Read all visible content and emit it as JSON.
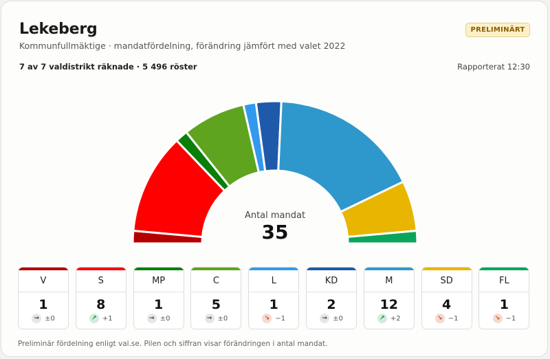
{
  "header": {
    "title": "Lekeberg",
    "subtitle": "Kommunfullmäktige · mandatfördelning, förändring jämfört med valet 2022",
    "badge": "PRELIMINÄRT",
    "counting_status": "7 av 7 valdistrikt räknade · 5 496 röster",
    "reported": "Rapporterat 12:30"
  },
  "center": {
    "label": "Antal mandat",
    "total": "35"
  },
  "footnote": "Preliminär fördelning enligt val.se. Pilen och siffran visar förändringen i antal mandat.",
  "chart_data": {
    "type": "semicircle",
    "total_seats": 35,
    "parties": [
      {
        "abbr": "V",
        "seats": 1,
        "change": 0,
        "change_label": "±0",
        "color": "#b50000",
        "trend": "flat"
      },
      {
        "abbr": "S",
        "seats": 8,
        "change": 1,
        "change_label": "+1",
        "color": "#ff0000",
        "trend": "up"
      },
      {
        "abbr": "MP",
        "seats": 1,
        "change": 0,
        "change_label": "±0",
        "color": "#0a7f0a",
        "trend": "flat"
      },
      {
        "abbr": "C",
        "seats": 5,
        "change": 0,
        "change_label": "±0",
        "color": "#5fa41f",
        "trend": "flat"
      },
      {
        "abbr": "L",
        "seats": 1,
        "change": -1,
        "change_label": "−1",
        "color": "#3399ee",
        "trend": "down"
      },
      {
        "abbr": "KD",
        "seats": 2,
        "change": 0,
        "change_label": "±0",
        "color": "#1f5aaa",
        "trend": "flat"
      },
      {
        "abbr": "M",
        "seats": 12,
        "change": 2,
        "change_label": "+2",
        "color": "#2e98cc",
        "trend": "up"
      },
      {
        "abbr": "SD",
        "seats": 4,
        "change": -1,
        "change_label": "−1",
        "color": "#e8b600",
        "trend": "down"
      },
      {
        "abbr": "FL",
        "seats": 1,
        "change": -1,
        "change_label": "−1",
        "color": "#0aa55a",
        "trend": "down"
      }
    ]
  },
  "icons": {
    "up": "arrow-up-right-icon",
    "down": "arrow-down-right-icon",
    "flat": "arrow-right-icon"
  },
  "trend_colors": {
    "up": "#d3ecdc",
    "down": "#f6d9cf",
    "flat": "#e6e6e6"
  },
  "trend_glyph_colors": {
    "up": "#2b7a47",
    "down": "#b2503a",
    "flat": "#444444"
  }
}
